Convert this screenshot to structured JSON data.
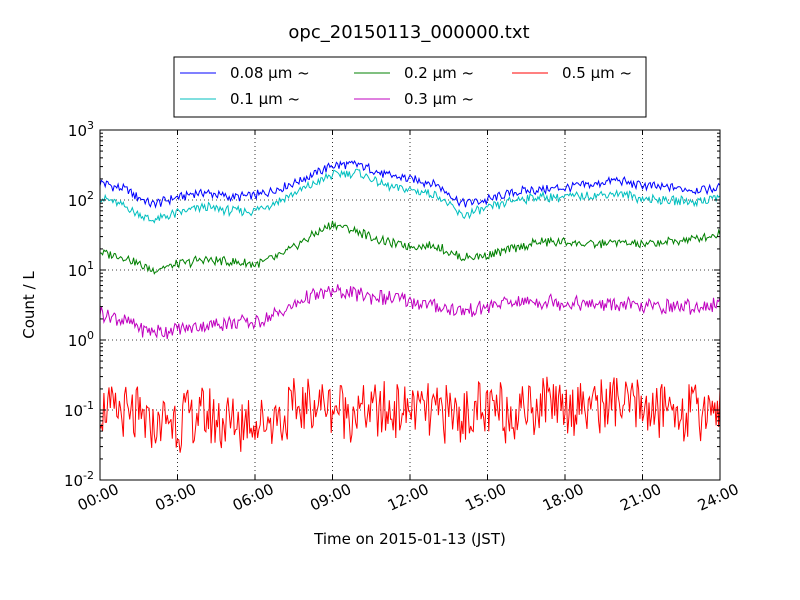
{
  "chart_data": {
    "type": "line",
    "title": "opc_20150113_000000.txt",
    "xlabel": "Time on 2015-01-13 (JST)",
    "ylabel": "Count / L",
    "x_range": [
      "00:00",
      "24:00"
    ],
    "x_ticks": [
      "00:00",
      "03:00",
      "06:00",
      "09:00",
      "12:00",
      "15:00",
      "18:00",
      "21:00",
      "24:00"
    ],
    "y_scale": "log",
    "ylim": [
      0.01,
      1000
    ],
    "y_ticks": [
      {
        "base": "10",
        "exp": "-2"
      },
      {
        "base": "10",
        "exp": "-1"
      },
      {
        "base": "10",
        "exp": "0"
      },
      {
        "base": "10",
        "exp": "1"
      },
      {
        "base": "10",
        "exp": "2"
      },
      {
        "base": "10",
        "exp": "3"
      }
    ],
    "grid": true,
    "legend_placement": "top-center",
    "hours": [
      0,
      1,
      2,
      3,
      4,
      5,
      6,
      7,
      8,
      9,
      10,
      11,
      12,
      13,
      14,
      15,
      16,
      17,
      18,
      19,
      20,
      21,
      22,
      23,
      24
    ],
    "series": [
      {
        "name": "0.08 μm ~",
        "color": "#0000ff",
        "values": [
          180,
          140,
          85,
          110,
          130,
          110,
          115,
          150,
          210,
          310,
          320,
          230,
          200,
          170,
          90,
          100,
          130,
          140,
          150,
          165,
          190,
          160,
          150,
          140,
          150
        ]
      },
      {
        "name": "0.1 μm ~",
        "color": "#00bfbf",
        "values": [
          110,
          80,
          50,
          65,
          80,
          70,
          70,
          100,
          150,
          230,
          250,
          160,
          140,
          120,
          60,
          75,
          100,
          110,
          110,
          115,
          125,
          105,
          100,
          95,
          110
        ]
      },
      {
        "name": "0.2 μm ~",
        "color": "#008000",
        "values": [
          18,
          15,
          10,
          12,
          14,
          13,
          12,
          16,
          28,
          45,
          35,
          25,
          22,
          22,
          15,
          16,
          20,
          25,
          25,
          23,
          25,
          23,
          25,
          28,
          33
        ]
      },
      {
        "name": "0.3 μm ~",
        "color": "#bf00bf",
        "values": [
          2.5,
          1.8,
          1.3,
          1.4,
          1.6,
          1.8,
          1.8,
          2.5,
          4,
          5,
          4.5,
          4,
          3.5,
          3,
          2.5,
          3,
          3.5,
          3.5,
          3.5,
          3.2,
          3.2,
          3,
          3,
          3,
          3.2
        ]
      },
      {
        "name": "0.5 μm ~",
        "color": "#ff0000",
        "values": [
          0.1,
          0.08,
          0.06,
          0.07,
          0.08,
          0.06,
          0.07,
          0.08,
          0.12,
          0.12,
          0.1,
          0.1,
          0.1,
          0.09,
          0.09,
          0.09,
          0.1,
          0.12,
          0.13,
          0.12,
          0.12,
          0.11,
          0.1,
          0.1,
          0.12
        ]
      }
    ]
  }
}
